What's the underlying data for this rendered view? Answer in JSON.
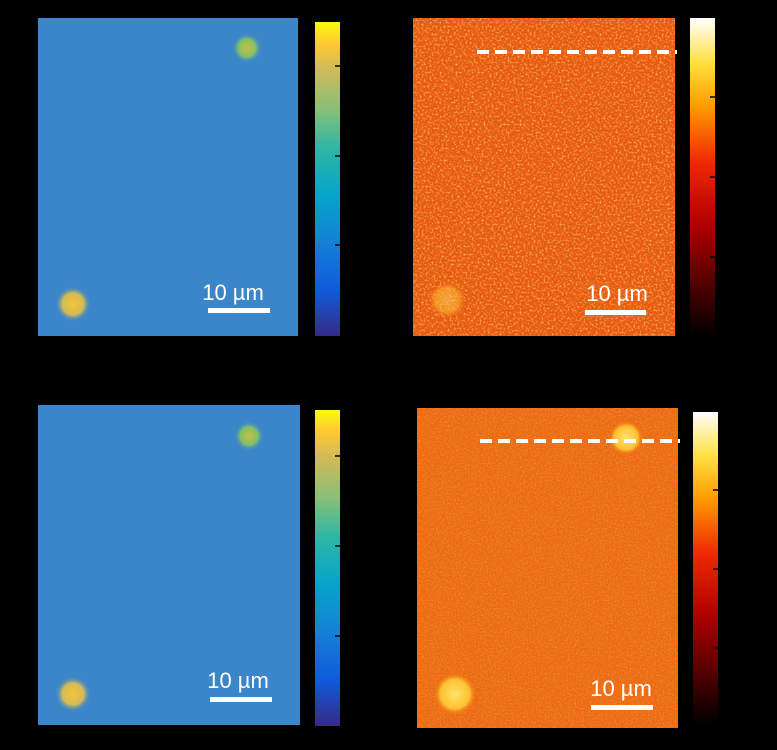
{
  "panels": [
    {
      "scale_bar": "10 µm"
    },
    {
      "scale_bar": "10 µm"
    },
    {
      "scale_bar": "10 µm"
    },
    {
      "scale_bar": "10 µm"
    }
  ]
}
